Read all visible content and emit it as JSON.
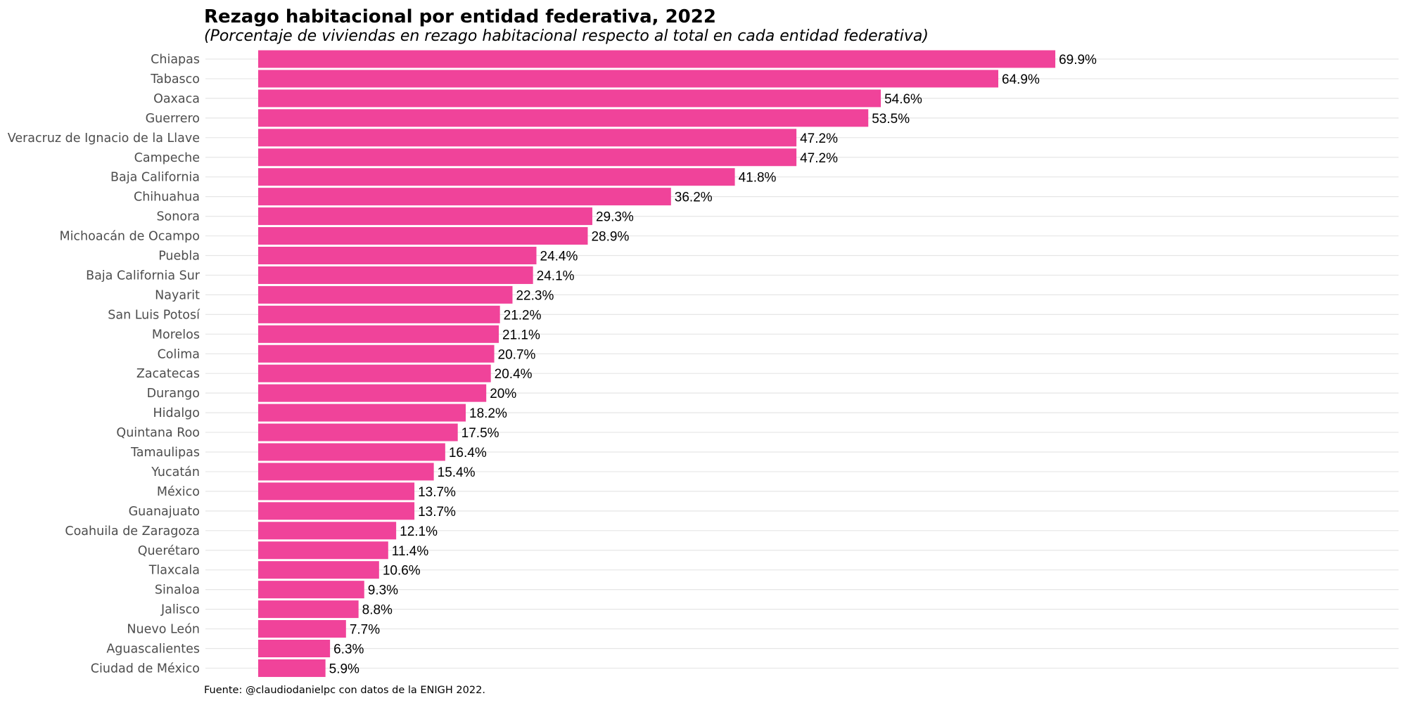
{
  "chart_data": {
    "type": "bar",
    "orientation": "horizontal",
    "title": "Rezago habitacional por entidad federativa, 2022",
    "subtitle": "(Porcentaje de viviendas en rezago habitacional respecto al total en cada entidad federativa)",
    "caption": "Fuente: @claudiodanielpc con datos de la ENIGH 2022.",
    "bar_color": "#f0439a",
    "grid": true,
    "xlim": [
      0,
      100
    ],
    "categories": [
      "Chiapas",
      "Tabasco",
      "Oaxaca",
      "Guerrero",
      "Veracruz de Ignacio de la Llave",
      "Campeche",
      "Baja California",
      "Chihuahua",
      "Sonora",
      "Michoacán de Ocampo",
      "Puebla",
      "Baja California Sur",
      "Nayarit",
      "San Luis Potosí",
      "Morelos",
      "Colima",
      "Zacatecas",
      "Durango",
      "Hidalgo",
      "Quintana Roo",
      "Tamaulipas",
      "Yucatán",
      "México",
      "Guanajuato",
      "Coahuila de Zaragoza",
      "Querétaro",
      "Tlaxcala",
      "Sinaloa",
      "Jalisco",
      "Nuevo León",
      "Aguascalientes",
      "Ciudad de México"
    ],
    "values": [
      69.9,
      64.9,
      54.6,
      53.5,
      47.2,
      47.2,
      41.8,
      36.2,
      29.3,
      28.9,
      24.4,
      24.1,
      22.3,
      21.2,
      21.1,
      20.7,
      20.4,
      20,
      18.2,
      17.5,
      16.4,
      15.4,
      13.7,
      13.7,
      12.1,
      11.4,
      10.6,
      9.3,
      8.8,
      7.7,
      6.3,
      5.9
    ],
    "value_labels": [
      "69.9%",
      "64.9%",
      "54.6%",
      "53.5%",
      "47.2%",
      "47.2%",
      "41.8%",
      "36.2%",
      "29.3%",
      "28.9%",
      "24.4%",
      "24.1%",
      "22.3%",
      "21.2%",
      "21.1%",
      "20.7%",
      "20.4%",
      "20%",
      "18.2%",
      "17.5%",
      "16.4%",
      "15.4%",
      "13.7%",
      "13.7%",
      "12.1%",
      "11.4%",
      "10.6%",
      "9.3%",
      "8.8%",
      "7.7%",
      "6.3%",
      "5.9%"
    ]
  }
}
